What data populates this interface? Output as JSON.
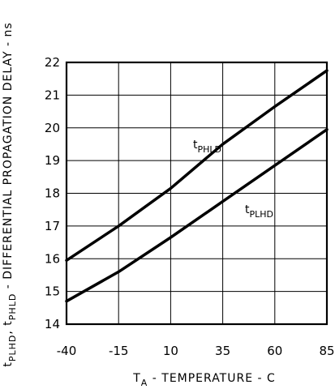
{
  "chart_data": {
    "type": "line",
    "xlabel": {
      "main": "T",
      "sub": "A",
      "rest": " - TEMPERATURE - C"
    },
    "ylabel": {
      "p1": "t",
      "s1": "PLHD",
      "p2": ", t",
      "s2": "PHLD",
      "rest": " - DIFFERENTIAL PROPAGATION DELAY - ns"
    },
    "xlim": [
      -40,
      85
    ],
    "ylim": [
      14,
      22
    ],
    "x_ticks": [
      -40,
      -15,
      10,
      35,
      60,
      85
    ],
    "y_ticks": [
      14,
      15,
      16,
      17,
      18,
      19,
      20,
      21,
      22
    ],
    "grid": true,
    "series": [
      {
        "id": "phld",
        "name_main": "t",
        "name_sub": "PHLD",
        "x": [
          -40,
          -15,
          10,
          35,
          60,
          85
        ],
        "values": [
          15.95,
          17.0,
          18.15,
          19.5,
          20.65,
          21.75
        ]
      },
      {
        "id": "plhd",
        "name_main": "t",
        "name_sub": "PLHD",
        "x": [
          -40,
          -15,
          10,
          35,
          60,
          85
        ],
        "values": [
          14.7,
          15.6,
          16.65,
          17.75,
          18.85,
          19.95
        ]
      }
    ]
  }
}
